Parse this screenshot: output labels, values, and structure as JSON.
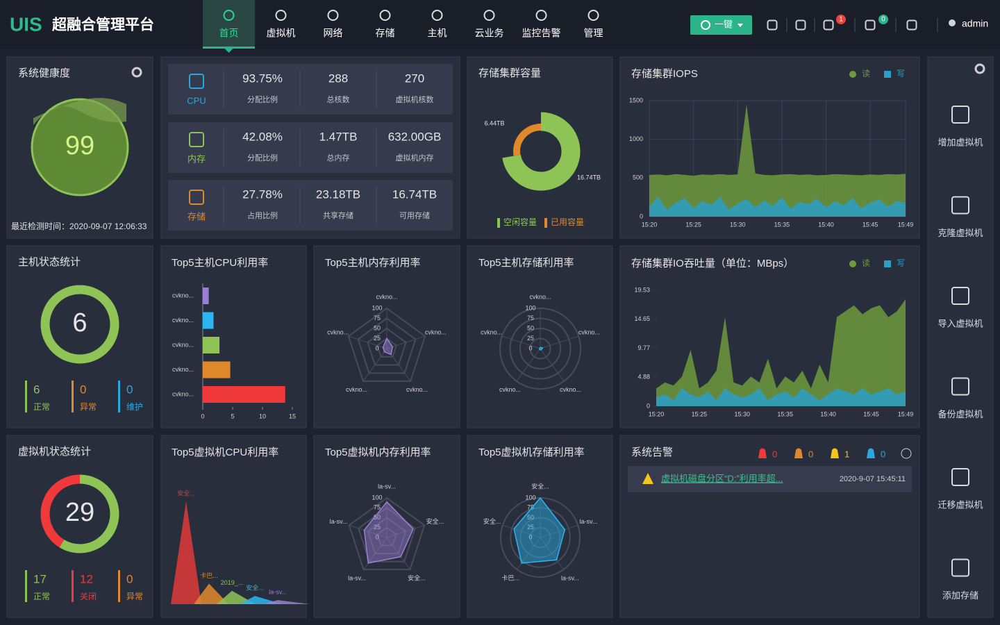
{
  "header": {
    "logo": "UIS",
    "title": "超融合管理平台",
    "nav": [
      "首页",
      "虚拟机",
      "网络",
      "存储",
      "主机",
      "云业务",
      "监控告警",
      "管理"
    ],
    "one_key": "一键",
    "notifications": 1,
    "tasks": 0,
    "user": "admin"
  },
  "health": {
    "title": "系统健康度",
    "score": 99,
    "last_check": "最近检测时间：2020-09-07 12:06:33"
  },
  "resources": {
    "rows": [
      {
        "name": "CPU",
        "color": "#29a8e0",
        "items": [
          {
            "value": "93.75%",
            "label": "分配比例"
          },
          {
            "value": "288",
            "label": "总核数"
          },
          {
            "value": "270",
            "label": "虚拟机核数"
          }
        ]
      },
      {
        "name": "内存",
        "color": "#8dc455",
        "items": [
          {
            "value": "42.08%",
            "label": "分配比例"
          },
          {
            "value": "1.47TB",
            "label": "总内存"
          },
          {
            "value": "632.00GB",
            "label": "虚拟机内存"
          }
        ]
      },
      {
        "name": "存储",
        "color": "#e0892b",
        "items": [
          {
            "value": "27.78%",
            "label": "占用比例"
          },
          {
            "value": "23.18TB",
            "label": "共享存储"
          },
          {
            "value": "16.74TB",
            "label": "可用存储"
          }
        ]
      }
    ]
  },
  "storage_capacity": {
    "type": "donut",
    "title": "存储集群容量",
    "categories": [
      "空闲容量",
      "已用容量"
    ],
    "values": [
      16.74,
      6.44
    ],
    "value_labels": [
      "16.74TB",
      "6.44TB"
    ],
    "colors": [
      "#8dc455",
      "#e0892b"
    ]
  },
  "iops": {
    "type": "area",
    "title": "存储集群IOPS",
    "x": [
      "15:20",
      "15:21",
      "15:22",
      "15:23",
      "15:24",
      "15:25",
      "15:26",
      "15:27",
      "15:28",
      "15:29",
      "15:30",
      "15:31",
      "15:32",
      "15:33",
      "15:34",
      "15:35",
      "15:36",
      "15:37",
      "15:38",
      "15:39",
      "15:40",
      "15:41",
      "15:42",
      "15:43",
      "15:44",
      "15:45",
      "15:46",
      "15:47",
      "15:48",
      "15:49"
    ],
    "ylim": [
      0,
      1500
    ],
    "yticks": [
      0,
      500,
      1000,
      1500
    ],
    "grid": true,
    "series": [
      {
        "name": "读",
        "color": "#6d9a3c",
        "values": [
          540,
          545,
          535,
          550,
          540,
          530,
          545,
          540,
          550,
          540,
          545,
          1450,
          560,
          540,
          535,
          545,
          550,
          540,
          545,
          535,
          540,
          550,
          545,
          540,
          535,
          545,
          540,
          550,
          545,
          555
        ]
      },
      {
        "name": "写",
        "color": "#2a9fc8",
        "values": [
          120,
          260,
          90,
          180,
          240,
          110,
          200,
          150,
          260,
          90,
          170,
          230,
          120,
          210,
          140,
          250,
          100,
          190,
          160,
          230,
          120,
          200,
          150,
          240,
          110,
          180,
          220,
          130,
          200,
          180
        ]
      }
    ]
  },
  "host_status": {
    "title": "主机状态统计",
    "total": 6,
    "categories": [
      "正常",
      "异常",
      "维护"
    ],
    "values": [
      6,
      0,
      0
    ],
    "colors": [
      "#8dc455",
      "#e0892b",
      "#29a8e0"
    ]
  },
  "host_cpu": {
    "type": "hbar",
    "title": "Top5主机CPU利用率",
    "categories": [
      "cvkno...",
      "cvkno...",
      "cvkno...",
      "cvkno...",
      "cvkno..."
    ],
    "values": [
      1,
      1.8,
      2.8,
      4.6,
      13.8
    ],
    "colors": [
      "#9b7fd4",
      "#29b6f0",
      "#8dc455",
      "#e0892b",
      "#f0393a"
    ],
    "xlim": [
      0,
      15
    ],
    "xticks": [
      0,
      5,
      10,
      15
    ]
  },
  "host_mem": {
    "type": "radar",
    "title": "Top5主机内存利用率",
    "categories": [
      "cvkno...",
      "cvkno...",
      "cvkno...",
      "cvkno...",
      "cvkno..."
    ],
    "values": [
      25,
      15,
      18,
      10,
      10
    ],
    "rlim": [
      0,
      100
    ],
    "rticks": [
      0,
      25,
      50,
      75,
      100
    ],
    "color": "#9b7fd4",
    "grid_shape": "polygon"
  },
  "host_storage": {
    "type": "radar",
    "title": "Top5主机存储利用率",
    "categories": [
      "cvkno...",
      "cvkno...",
      "cvkno...",
      "cvkno...",
      "cvkno..."
    ],
    "values": [
      3,
      6,
      4,
      3,
      2
    ],
    "rlim": [
      0,
      100
    ],
    "rticks": [
      0,
      25,
      50,
      75,
      100
    ],
    "color": "#29b6f0",
    "grid_shape": "circle"
  },
  "io": {
    "type": "area",
    "title": "存储集群IO吞吐量（单位：MBps）",
    "x": [
      "15:20",
      "15:21",
      "15:22",
      "15:23",
      "15:24",
      "15:25",
      "15:26",
      "15:27",
      "15:28",
      "15:29",
      "15:30",
      "15:31",
      "15:32",
      "15:33",
      "15:34",
      "15:35",
      "15:36",
      "15:37",
      "15:38",
      "15:39",
      "15:40",
      "15:41",
      "15:42",
      "15:43",
      "15:44",
      "15:45",
      "15:46",
      "15:47",
      "15:48",
      "15:49"
    ],
    "ylim": [
      0,
      19.53
    ],
    "yticks": [
      0,
      4.88,
      9.77,
      14.65,
      19.53
    ],
    "grid": false,
    "series": [
      {
        "name": "读",
        "color": "#6d9a3c",
        "values": [
          3,
          4,
          3.5,
          5,
          9.5,
          3,
          4,
          6,
          15,
          4,
          3.5,
          5,
          4,
          8,
          3,
          5,
          4,
          6,
          3,
          7,
          4,
          15,
          16,
          17,
          15.5,
          16.5,
          17,
          15,
          16,
          18
        ]
      },
      {
        "name": "写",
        "color": "#2a9fc8",
        "values": [
          1.5,
          2,
          1,
          3,
          2,
          1.5,
          2.5,
          1,
          3,
          2,
          1.5,
          2,
          3,
          1,
          2,
          2.5,
          1.5,
          3,
          2,
          1,
          2,
          3,
          2.5,
          2,
          3,
          2,
          2.5,
          3,
          2,
          2.5
        ]
      }
    ]
  },
  "vm_status": {
    "title": "虚拟机状态统计",
    "total": 29,
    "categories": [
      "正常",
      "关闭",
      "异常"
    ],
    "values": [
      17,
      12,
      0
    ],
    "colors": [
      "#8dc455",
      "#f0393a",
      "#e0892b"
    ]
  },
  "vm_cpu": {
    "type": "peaks",
    "title": "Top5虚拟机CPU利用率",
    "categories": [
      "安全...",
      "卡巴...",
      "2019_...",
      "安全...",
      "la-sv..."
    ],
    "values": [
      100,
      20,
      13,
      8,
      4
    ],
    "colors": [
      "#e0393a",
      "#e0892b",
      "#8dc455",
      "#29b6f0",
      "#9b7fd4"
    ]
  },
  "vm_mem": {
    "type": "radar",
    "title": "Top5虚拟机内存利用率",
    "categories": [
      "la-sv...",
      "安全...",
      "安全...",
      "la-sv...",
      "la-sv..."
    ],
    "values": [
      90,
      70,
      60,
      80,
      60
    ],
    "rlim": [
      0,
      100
    ],
    "rticks": [
      0,
      25,
      50,
      75,
      100
    ],
    "color": "#9b7fd4",
    "grid_shape": "polygon"
  },
  "vm_storage": {
    "type": "radar",
    "title": "Top5虚拟机存储利用率",
    "categories": [
      "安全...",
      "la-sv...",
      "la-sv...",
      "卡巴...",
      "安全..."
    ],
    "values": [
      100,
      65,
      70,
      80,
      70
    ],
    "rlim": [
      0,
      100
    ],
    "rticks": [
      0,
      25,
      50,
      75,
      100
    ],
    "color": "#29b6f0",
    "grid_shape": "circle"
  },
  "alarms": {
    "title": "系统告警",
    "counts": [
      0,
      0,
      1,
      0
    ],
    "count_colors": [
      "#f0393a",
      "#e0892b",
      "#f5c518",
      "#29a8e0"
    ],
    "items": [
      {
        "text": "虚拟机磁盘分区“D:”利用率超...",
        "time": "2020-9-07 15:45:11"
      }
    ]
  },
  "sidebar": {
    "actions": [
      "增加虚拟机",
      "克隆虚拟机",
      "导入虚拟机",
      "备份虚拟机",
      "迁移虚拟机",
      "添加存储"
    ]
  }
}
